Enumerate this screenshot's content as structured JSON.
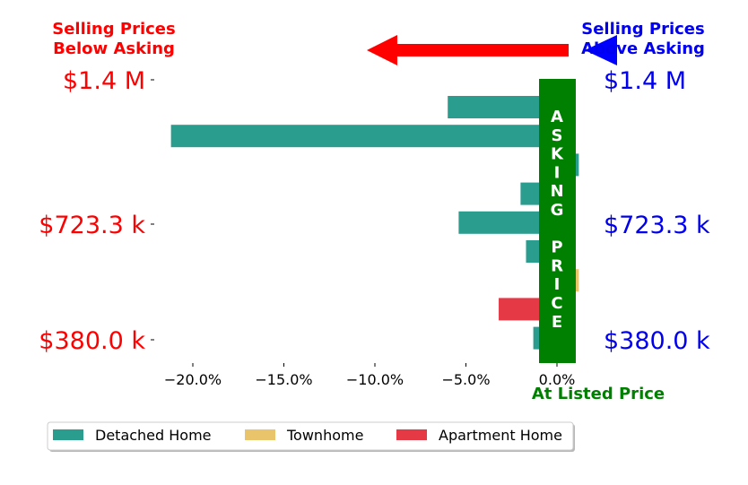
{
  "header": {
    "below_line1": "Selling Prices",
    "below_line2": "Below Asking",
    "above_line1": "Selling Prices",
    "above_line2": "Above Asking",
    "below_color": "#ff0000",
    "above_color": "#0000ee"
  },
  "price_labels": {
    "left": [
      "$1.4 M",
      "$723.3 k",
      "$380.0 k"
    ],
    "right": [
      "$1.4 M",
      "$723.3 k",
      "$380.0 k"
    ],
    "left_color": "#ff0000",
    "right_color": "#0000ee"
  },
  "banner": {
    "text": "ASKING PRICE",
    "color": "#008000"
  },
  "at_listed_label": "At Listed Price",
  "at_listed_color": "#008000",
  "arrows": {
    "red_color": "#ff0000",
    "blue_color": "#0000ff"
  },
  "chart_data": {
    "type": "bar",
    "orientation": "horizontal",
    "xlim": [
      -22.5,
      1.5
    ],
    "x_ticks": [
      -20,
      -15,
      -10,
      -5,
      0
    ],
    "x_tick_labels": [
      "−20.0%",
      "−15.0%",
      "−10.0%",
      "−5.0%",
      "0.0%"
    ],
    "grid": false,
    "legend_placement": "bottom",
    "series": [
      {
        "name": "Detached Home",
        "color": "#2a9d8f"
      },
      {
        "name": "Townhome",
        "color": "#e9c46a"
      },
      {
        "name": "Apartment Home",
        "color": "#e63946"
      }
    ],
    "bars": [
      {
        "series": "Detached Home",
        "value": -6.0
      },
      {
        "series": "Detached Home",
        "value": -21.2
      },
      {
        "series": "Detached Home",
        "value": 1.2
      },
      {
        "series": "Detached Home",
        "value": -2.0
      },
      {
        "series": "Detached Home",
        "value": -5.4
      },
      {
        "series": "Detached Home",
        "value": -1.7
      },
      {
        "series": "Townhome",
        "value": 1.2
      },
      {
        "series": "Apartment Home",
        "value": -3.2
      },
      {
        "series": "Detached Home",
        "value": -1.3
      }
    ]
  }
}
